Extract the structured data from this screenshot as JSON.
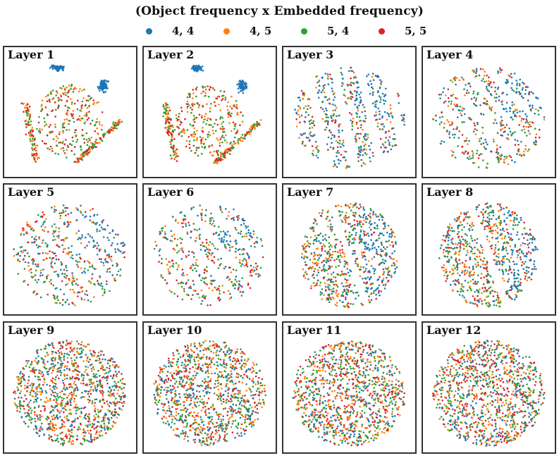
{
  "chart_data": {
    "type": "scatter",
    "title": "(Object frequency x Embedded frequency)",
    "legend": {
      "placement": "top-center",
      "entries": [
        {
          "label": "4, 4",
          "color": "#1f77b4"
        },
        {
          "label": "4, 5",
          "color": "#ff7f0e"
        },
        {
          "label": "5, 4",
          "color": "#2ca02c"
        },
        {
          "label": "5, 5",
          "color": "#d62728"
        }
      ]
    },
    "panels": [
      {
        "title": "Layer 1"
      },
      {
        "title": "Layer 2"
      },
      {
        "title": "Layer 3"
      },
      {
        "title": "Layer 4"
      },
      {
        "title": "Layer 5"
      },
      {
        "title": "Layer 6"
      },
      {
        "title": "Layer 7"
      },
      {
        "title": "Layer 8"
      },
      {
        "title": "Layer 9"
      },
      {
        "title": "Layer 10"
      },
      {
        "title": "Layer 11"
      },
      {
        "title": "Layer 12"
      }
    ],
    "axes": "hidden",
    "grid": false
  }
}
